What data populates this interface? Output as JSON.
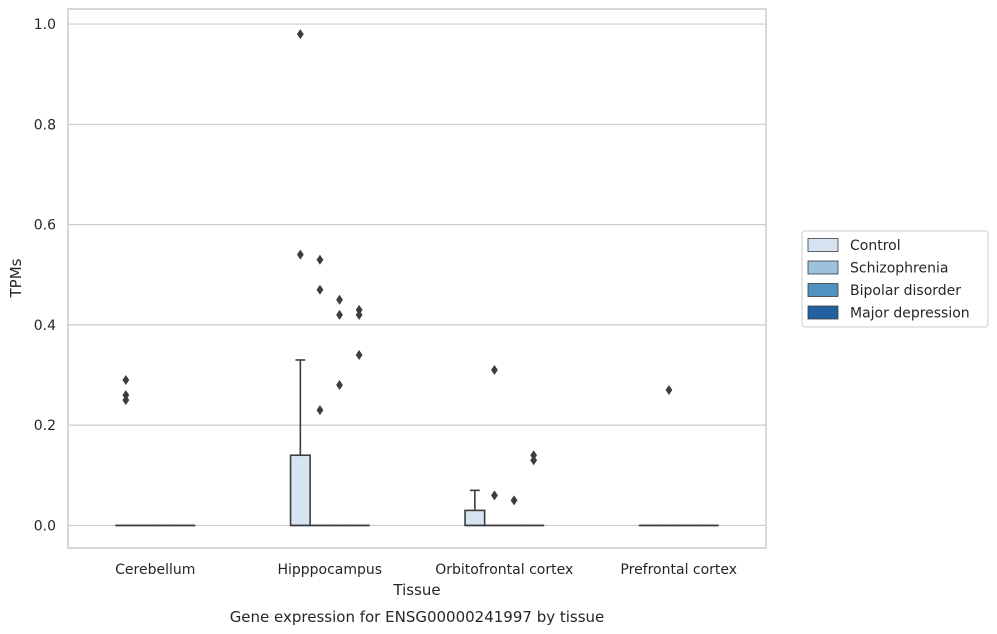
{
  "chart_data": {
    "type": "box",
    "title": "Gene expression for ENSG00000241997 by tissue",
    "xlabel": "Tissue",
    "ylabel": "TPMs",
    "ylim": [
      -0.045,
      1.03
    ],
    "yticks": [
      "0.0",
      "0.2",
      "0.4",
      "0.6",
      "0.8",
      "1.0"
    ],
    "grid": true,
    "legend_position": "right",
    "categories": [
      "Cerebellum",
      "Hipppocampus",
      "Orbitofrontal cortex",
      "Prefrontal cortex"
    ],
    "series": [
      {
        "name": "Control",
        "color": "#d6e4f2"
      },
      {
        "name": "Schizophrenia",
        "color": "#9dc2dc"
      },
      {
        "name": "Bipolar disorder",
        "color": "#5093c0"
      },
      {
        "name": "Major depression",
        "color": "#2362a1"
      }
    ],
    "boxes": [
      {
        "category": "Cerebellum",
        "series": "Control",
        "min": 0,
        "q1": 0,
        "median": 0,
        "q3": 0,
        "max": 0,
        "outliers": [
          0.29,
          0.26,
          0.25
        ]
      },
      {
        "category": "Cerebellum",
        "series": "Schizophrenia",
        "min": 0,
        "q1": 0,
        "median": 0,
        "q3": 0,
        "max": 0,
        "outliers": []
      },
      {
        "category": "Cerebellum",
        "series": "Bipolar disorder",
        "min": 0,
        "q1": 0,
        "median": 0,
        "q3": 0,
        "max": 0,
        "outliers": []
      },
      {
        "category": "Cerebellum",
        "series": "Major depression",
        "min": 0,
        "q1": 0,
        "median": 0,
        "q3": 0,
        "max": 0,
        "outliers": []
      },
      {
        "category": "Hipppocampus",
        "series": "Control",
        "min": 0,
        "q1": 0,
        "median": 0,
        "q3": 0.14,
        "max": 0.33,
        "outliers": [
          0.98,
          0.54
        ]
      },
      {
        "category": "Hipppocampus",
        "series": "Schizophrenia",
        "min": 0,
        "q1": 0,
        "median": 0,
        "q3": 0,
        "max": 0,
        "outliers": [
          0.53,
          0.47,
          0.23
        ]
      },
      {
        "category": "Hipppocampus",
        "series": "Bipolar disorder",
        "min": 0,
        "q1": 0,
        "median": 0,
        "q3": 0,
        "max": 0,
        "outliers": [
          0.45,
          0.42,
          0.28
        ]
      },
      {
        "category": "Hipppocampus",
        "series": "Major depression",
        "min": 0,
        "q1": 0,
        "median": 0,
        "q3": 0,
        "max": 0,
        "outliers": [
          0.43,
          0.42,
          0.34
        ]
      },
      {
        "category": "Orbitofrontal cortex",
        "series": "Control",
        "min": 0,
        "q1": 0,
        "median": 0,
        "q3": 0.03,
        "max": 0.07,
        "outliers": []
      },
      {
        "category": "Orbitofrontal cortex",
        "series": "Schizophrenia",
        "min": 0,
        "q1": 0,
        "median": 0,
        "q3": 0,
        "max": 0,
        "outliers": [
          0.31,
          0.06
        ]
      },
      {
        "category": "Orbitofrontal cortex",
        "series": "Bipolar disorder",
        "min": 0,
        "q1": 0,
        "median": 0,
        "q3": 0,
        "max": 0,
        "outliers": [
          0.05
        ]
      },
      {
        "category": "Orbitofrontal cortex",
        "series": "Major depression",
        "min": 0,
        "q1": 0,
        "median": 0,
        "q3": 0,
        "max": 0,
        "outliers": [
          0.14,
          0.13
        ]
      },
      {
        "category": "Prefrontal cortex",
        "series": "Control",
        "min": 0,
        "q1": 0,
        "median": 0,
        "q3": 0,
        "max": 0,
        "outliers": []
      },
      {
        "category": "Prefrontal cortex",
        "series": "Schizophrenia",
        "min": 0,
        "q1": 0,
        "median": 0,
        "q3": 0,
        "max": 0,
        "outliers": [
          0.27
        ]
      },
      {
        "category": "Prefrontal cortex",
        "series": "Bipolar disorder",
        "min": 0,
        "q1": 0,
        "median": 0,
        "q3": 0,
        "max": 0,
        "outliers": []
      },
      {
        "category": "Prefrontal cortex",
        "series": "Major depression",
        "min": 0,
        "q1": 0,
        "median": 0,
        "q3": 0,
        "max": 0,
        "outliers": []
      }
    ]
  }
}
